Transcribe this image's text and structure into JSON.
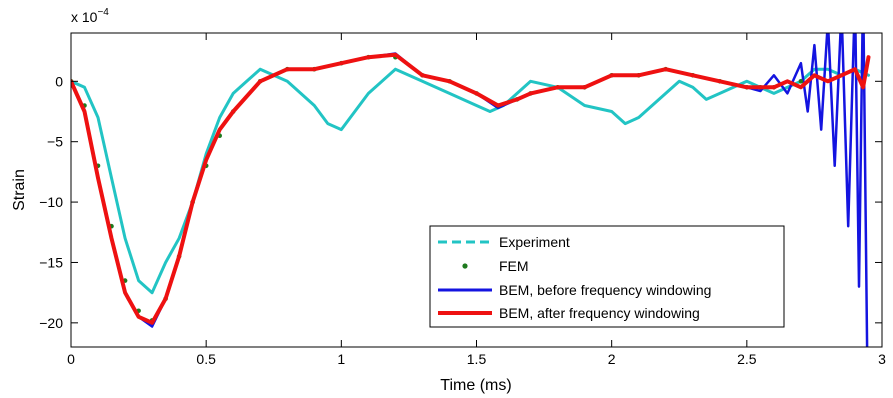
{
  "chart_data": {
    "type": "line",
    "title": "",
    "xlabel": "Time (ms)",
    "ylabel": "Strain",
    "y_scale_label": "x 10",
    "y_scale_exponent": "−4",
    "xlim": [
      0,
      3
    ],
    "ylim": [
      -22,
      4
    ],
    "x_ticks": [
      0,
      0.5,
      1,
      1.5,
      2,
      2.5,
      3
    ],
    "x_tick_labels": [
      "0",
      "0.5",
      "1",
      "1.5",
      "2",
      "2.5",
      "3"
    ],
    "y_ticks": [
      0,
      -5,
      -10,
      -15,
      -20
    ],
    "y_tick_labels": [
      "0",
      "−5",
      "−10",
      "−15",
      "−20"
    ],
    "grid": false,
    "legend_position": "lower-right",
    "series": [
      {
        "name": "Experiment",
        "color": "#22c4c4",
        "style": "dashed",
        "x": [
          0,
          0.05,
          0.1,
          0.15,
          0.2,
          0.25,
          0.3,
          0.35,
          0.4,
          0.45,
          0.5,
          0.55,
          0.6,
          0.65,
          0.7,
          0.8,
          0.9,
          0.95,
          1.0,
          1.1,
          1.2,
          1.3,
          1.4,
          1.5,
          1.55,
          1.6,
          1.7,
          1.8,
          1.9,
          2.0,
          2.05,
          2.1,
          2.2,
          2.25,
          2.3,
          2.35,
          2.4,
          2.5,
          2.6,
          2.7,
          2.75,
          2.8,
          2.85,
          2.9,
          2.95
        ],
        "y": [
          0,
          -0.5,
          -3,
          -8,
          -13,
          -16.5,
          -17.5,
          -15,
          -13,
          -10,
          -6,
          -3,
          -1,
          0,
          1,
          0,
          -2,
          -3.5,
          -4,
          -1,
          1,
          0,
          -1,
          -2,
          -2.5,
          -2,
          0,
          -0.5,
          -2,
          -2.5,
          -3.5,
          -3,
          -1,
          0,
          -0.5,
          -1.5,
          -1,
          0,
          -1,
          0,
          1,
          1,
          0.5,
          1,
          0.5
        ]
      },
      {
        "name": "FEM",
        "color": "#1e7a1e",
        "style": "dots",
        "x": [
          0,
          0.05,
          0.1,
          0.15,
          0.2,
          0.25,
          0.3,
          0.35,
          0.4,
          0.45,
          0.5,
          0.55,
          0.6,
          0.7,
          0.8,
          0.9,
          1.0,
          1.1,
          1.2,
          1.3,
          1.4,
          1.5,
          1.58,
          1.65,
          1.7,
          1.8,
          1.9,
          2.0,
          2.1,
          2.2,
          2.3,
          2.4,
          2.5,
          2.55,
          2.6,
          2.7
        ],
        "y": [
          0,
          -2,
          -7,
          -12,
          -16.5,
          -19,
          -19.8,
          -18,
          -14.5,
          -10,
          -7,
          -4.5,
          -2.5,
          0,
          1,
          1,
          1.5,
          2,
          2,
          0.5,
          0,
          -1,
          -2,
          -1.5,
          -1,
          -0.5,
          -0.5,
          0.5,
          0.5,
          1,
          0.5,
          0,
          -0.5,
          -0.5,
          -0.5,
          0
        ]
      },
      {
        "name": "BEM, before frequency windowing",
        "color": "#1414e0",
        "style": "solid",
        "x": [
          0,
          0.05,
          0.1,
          0.15,
          0.2,
          0.25,
          0.3,
          0.35,
          0.4,
          0.45,
          0.5,
          0.55,
          0.6,
          0.7,
          0.8,
          0.9,
          1.0,
          1.1,
          1.2,
          1.3,
          1.4,
          1.5,
          1.58,
          1.65,
          1.7,
          1.8,
          1.9,
          2.0,
          2.1,
          2.2,
          2.3,
          2.4,
          2.5,
          2.55,
          2.6,
          2.65,
          2.7,
          2.725,
          2.75,
          2.775,
          2.8,
          2.825,
          2.85,
          2.875,
          2.9,
          2.915,
          2.93,
          2.945
        ],
        "y": [
          0,
          -2.5,
          -8,
          -13,
          -17.5,
          -19.5,
          -20.3,
          -18,
          -14.5,
          -10,
          -6.5,
          -4,
          -2.5,
          0,
          1,
          1,
          1.5,
          2,
          2.3,
          0.5,
          0,
          -1,
          -2.2,
          -1.5,
          -1,
          -0.5,
          -0.5,
          0.5,
          0.5,
          1,
          0.5,
          0,
          -0.5,
          -0.8,
          0.5,
          -1,
          1.5,
          -2.5,
          3,
          -4,
          5,
          -7,
          6,
          -12,
          7,
          -17,
          8,
          -22
        ]
      },
      {
        "name": "BEM, after frequency windowing",
        "color": "#ee1111",
        "style": "thick",
        "x": [
          0,
          0.05,
          0.1,
          0.15,
          0.2,
          0.25,
          0.3,
          0.35,
          0.4,
          0.45,
          0.5,
          0.55,
          0.6,
          0.7,
          0.8,
          0.9,
          1.0,
          1.1,
          1.2,
          1.3,
          1.4,
          1.5,
          1.58,
          1.65,
          1.7,
          1.8,
          1.9,
          2.0,
          2.1,
          2.2,
          2.3,
          2.4,
          2.5,
          2.55,
          2.6,
          2.65,
          2.7,
          2.75,
          2.8,
          2.85,
          2.9,
          2.93,
          2.95
        ],
        "y": [
          0,
          -2.5,
          -8,
          -13,
          -17.5,
          -19.5,
          -20,
          -18,
          -14.5,
          -10,
          -6.5,
          -4,
          -2.5,
          0,
          1,
          1,
          1.5,
          2,
          2.2,
          0.5,
          0,
          -1,
          -2,
          -1.5,
          -1,
          -0.5,
          -0.5,
          0.5,
          0.5,
          1,
          0.5,
          0,
          -0.5,
          -0.5,
          -0.5,
          0,
          -0.5,
          0.5,
          0,
          0.5,
          1,
          -0.5,
          2
        ]
      }
    ]
  }
}
